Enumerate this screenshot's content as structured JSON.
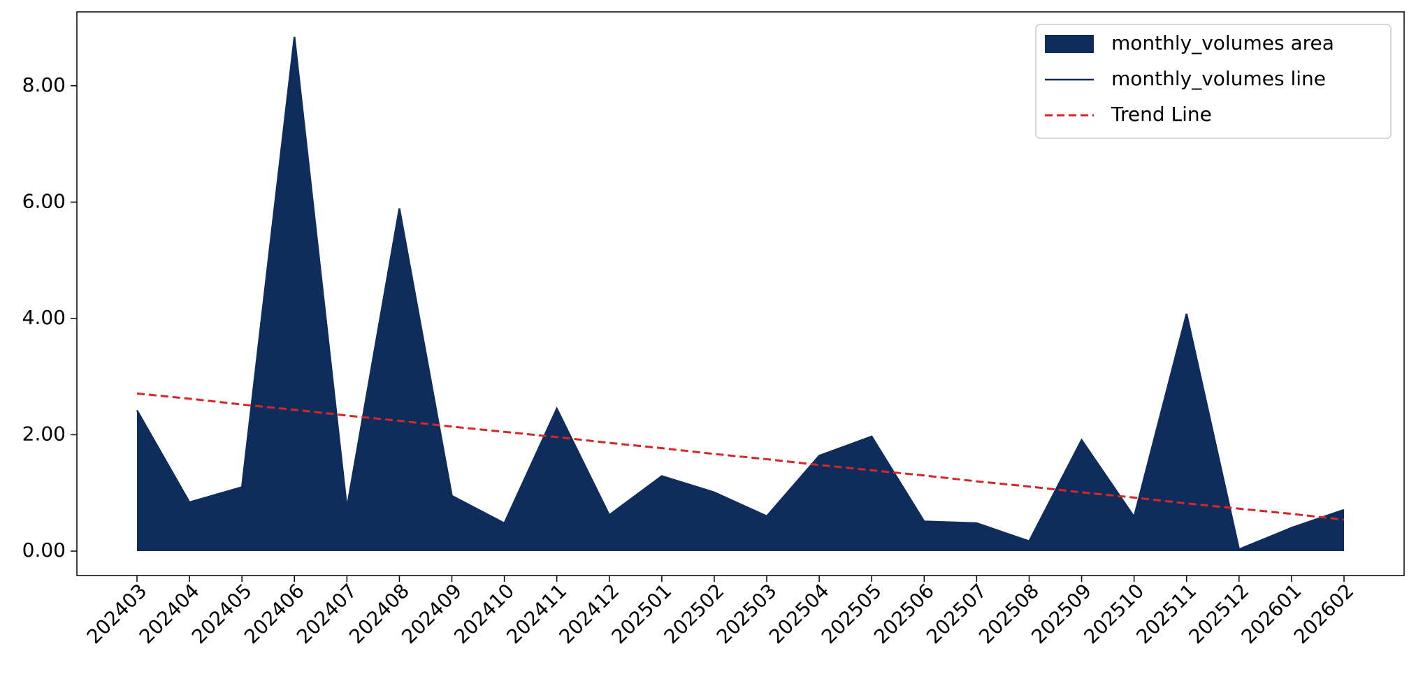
{
  "chart_data": {
    "type": "area",
    "categories": [
      "202403",
      "202404",
      "202405",
      "202406",
      "202407",
      "202408",
      "202409",
      "202410",
      "202411",
      "202412",
      "202501",
      "202502",
      "202503",
      "202504",
      "202505",
      "202506",
      "202507",
      "202508",
      "202509",
      "202510",
      "202511",
      "202512",
      "202601",
      "202602"
    ],
    "series": [
      {
        "name": "monthly_volumes area",
        "style": "area",
        "color": "#0f2d5c",
        "values": [
          2.42,
          0.84,
          1.1,
          8.84,
          0.74,
          5.89,
          0.95,
          0.48,
          2.45,
          0.62,
          1.29,
          1.01,
          0.6,
          1.64,
          1.97,
          0.51,
          0.48,
          0.17,
          1.91,
          0.59,
          4.08,
          0.03,
          0.4,
          0.71
        ]
      },
      {
        "name": "monthly_volumes line",
        "style": "line",
        "color": "#0f2d5c",
        "values": [
          2.42,
          0.84,
          1.1,
          8.84,
          0.74,
          5.89,
          0.95,
          0.48,
          2.45,
          0.62,
          1.29,
          1.01,
          0.6,
          1.64,
          1.97,
          0.51,
          0.48,
          0.17,
          1.91,
          0.59,
          4.08,
          0.03,
          0.4,
          0.71
        ]
      },
      {
        "name": "Trend Line",
        "style": "dashed",
        "color": "#d62728",
        "values": [
          2.71,
          2.62,
          2.52,
          2.43,
          2.33,
          2.24,
          2.14,
          2.05,
          1.96,
          1.86,
          1.77,
          1.67,
          1.58,
          1.48,
          1.39,
          1.3,
          1.2,
          1.11,
          1.01,
          0.92,
          0.82,
          0.73,
          0.64,
          0.54
        ]
      }
    ],
    "ylim": [
      -0.42,
      9.27
    ],
    "yticks": [
      {
        "value": 0,
        "label": "0.00"
      },
      {
        "value": 2,
        "label": "2.00"
      },
      {
        "value": 4,
        "label": "4.00"
      },
      {
        "value": 6,
        "label": "6.00"
      },
      {
        "value": 8,
        "label": "8.00"
      }
    ],
    "legend": "upper right"
  }
}
